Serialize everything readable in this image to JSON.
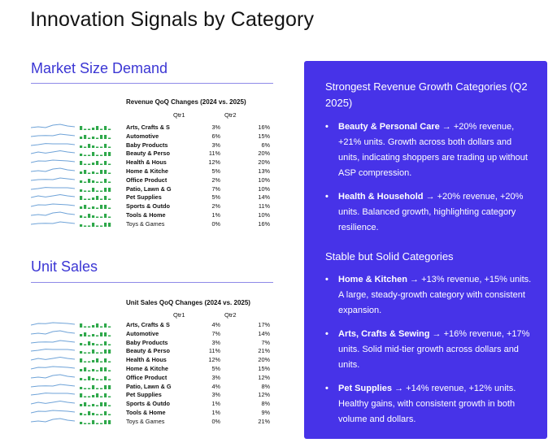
{
  "page_title": "Innovation Signals by Category",
  "market": {
    "section_title": "Market Size Demand",
    "table_title": "Revenue QoQ Changes (2024 vs. 2025)",
    "col1": "Qtr1",
    "col2": "Qtr2",
    "rows": [
      {
        "category": "Arts, Crafts & S",
        "q1": "3%",
        "q2": "16%",
        "bold": true
      },
      {
        "category": "Automotive",
        "q1": "6%",
        "q2": "15%",
        "bold": true
      },
      {
        "category": "Baby Products",
        "q1": "3%",
        "q2": "6%",
        "bold": true
      },
      {
        "category": "Beauty & Perso",
        "q1": "11%",
        "q2": "20%",
        "bold": true
      },
      {
        "category": "Health & Hous",
        "q1": "12%",
        "q2": "20%",
        "bold": true
      },
      {
        "category": "Home & Kitche",
        "q1": "5%",
        "q2": "13%",
        "bold": true
      },
      {
        "category": "Office Product",
        "q1": "2%",
        "q2": "10%",
        "bold": true
      },
      {
        "category": "Patio, Lawn & G",
        "q1": "7%",
        "q2": "10%",
        "bold": true
      },
      {
        "category": "Pet Supplies",
        "q1": "5%",
        "q2": "14%",
        "bold": true
      },
      {
        "category": "Sports & Outdo",
        "q1": "2%",
        "q2": "11%",
        "bold": true
      },
      {
        "category": "Tools & Home",
        "q1": "1%",
        "q2": "10%",
        "bold": true
      },
      {
        "category": "Toys & Games",
        "q1": "0%",
        "q2": "16%",
        "bold": false
      }
    ]
  },
  "units": {
    "section_title": "Unit Sales",
    "table_title": "Unit Sales QoQ Changes (2024 vs. 2025)",
    "col1": "Qtr1",
    "col2": "Qtr2",
    "rows": [
      {
        "category": "Arts, Crafts & S",
        "q1": "4%",
        "q2": "17%",
        "bold": true
      },
      {
        "category": "Automotive",
        "q1": "7%",
        "q2": "14%",
        "bold": true
      },
      {
        "category": "Baby Products",
        "q1": "3%",
        "q2": "7%",
        "bold": true
      },
      {
        "category": "Beauty & Perso",
        "q1": "11%",
        "q2": "21%",
        "bold": true
      },
      {
        "category": "Health & Hous",
        "q1": "12%",
        "q2": "20%",
        "bold": true
      },
      {
        "category": "Home & Kitche",
        "q1": "5%",
        "q2": "15%",
        "bold": true
      },
      {
        "category": "Office Product",
        "q1": "3%",
        "q2": "12%",
        "bold": true
      },
      {
        "category": "Patio, Lawn & G",
        "q1": "4%",
        "q2": "8%",
        "bold": true
      },
      {
        "category": "Pet Supplies",
        "q1": "3%",
        "q2": "12%",
        "bold": true
      },
      {
        "category": "Sports & Outdo",
        "q1": "1%",
        "q2": "8%",
        "bold": true
      },
      {
        "category": "Tools & Home",
        "q1": "1%",
        "q2": "9%",
        "bold": true
      },
      {
        "category": "Toys & Games",
        "q1": "0%",
        "q2": "21%",
        "bold": false
      }
    ]
  },
  "panel": {
    "heading1": "Strongest Revenue Growth Categories (Q2 2025)",
    "group1": [
      {
        "name": "Beauty & Personal Care",
        "text": " → +20% revenue, +21% units. Growth across both dollars and units, indicating shoppers are trading up without ASP compression."
      },
      {
        "name": "Health & Household",
        "text": " → +20% revenue, +20% units. Balanced growth, highlighting category resilience."
      }
    ],
    "heading2": "Stable but Solid Categories",
    "group2": [
      {
        "name": "Home & Kitchen",
        "text": " → +13% revenue, +15% units. A large, steady-growth category with consistent expansion."
      },
      {
        "name": "Arts, Crafts & Sewing",
        "text": " → +16% revenue, +17% units. Solid mid-tier growth across dollars and units."
      },
      {
        "name": "Pet Supplies",
        "text": " → +14% revenue, +12% units. Healthy gains, with consistent growth in both volume and dollars."
      }
    ]
  },
  "colors": {
    "accent": "#3b36d4",
    "panel_bg": "#4733e8",
    "spark_line": "#6fa3d8",
    "bar_green": "#2ea84a"
  }
}
